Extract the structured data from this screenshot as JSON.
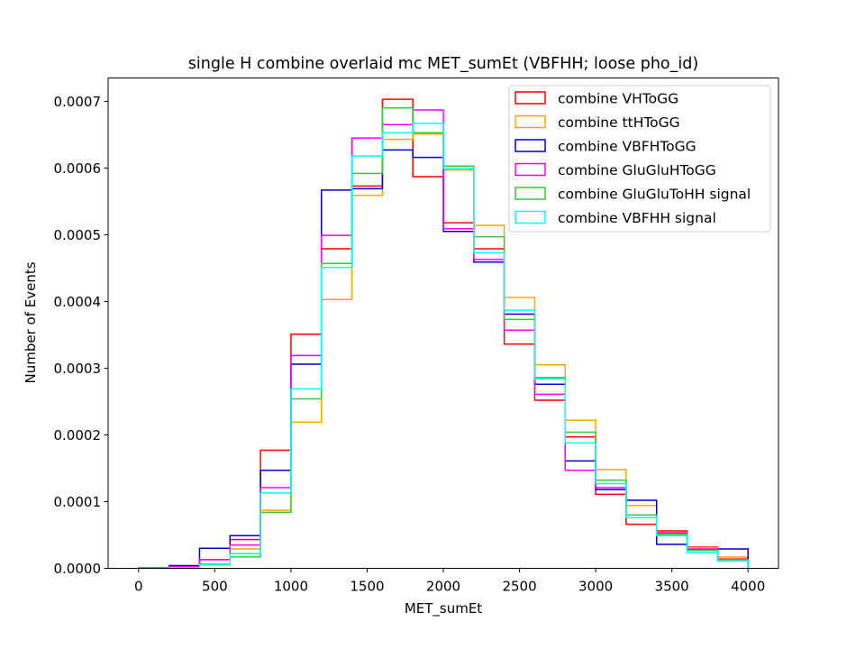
{
  "chart_data": {
    "type": "histogram-step",
    "title": "single H combine overlaid mc MET_sumEt (VBFHH; loose pho_id)",
    "xlabel": "MET_sumEt",
    "ylabel": "Number of Events",
    "xlim": [
      -200,
      4200
    ],
    "ylim": [
      0,
      0.000735
    ],
    "x_ticks": [
      "0",
      "500",
      "1000",
      "1500",
      "2000",
      "2500",
      "3000",
      "3500",
      "4000"
    ],
    "x_tick_values": [
      0,
      500,
      1000,
      1500,
      2000,
      2500,
      3000,
      3500,
      4000
    ],
    "y_ticks": [
      "0.0000",
      "0.0001",
      "0.0002",
      "0.0003",
      "0.0004",
      "0.0005",
      "0.0006",
      "0.0007"
    ],
    "y_tick_values": [
      0,
      0.0001,
      0.0002,
      0.0003,
      0.0004,
      0.0005,
      0.0006,
      0.0007
    ],
    "bin_edges": [
      0,
      200,
      400,
      600,
      800,
      1000,
      1200,
      1400,
      1600,
      1800,
      2000,
      2200,
      2400,
      2600,
      2800,
      3000,
      3200,
      3400,
      3600,
      3800,
      4000
    ],
    "legend_position": "top-right",
    "grid": false,
    "series": [
      {
        "name": "combine VHToGG",
        "color": "#ff0000",
        "values": [
          6e-07,
          2e-06,
          1.3e-05,
          4.3e-05,
          0.000177,
          0.000351,
          0.000479,
          0.000573,
          0.000703,
          0.000587,
          0.000518,
          0.000479,
          0.000336,
          0.000252,
          0.000197,
          0.000111,
          6.6e-05,
          5.6e-05,
          3.2e-05,
          1.4e-05
        ]
      },
      {
        "name": "combine ttHToGG",
        "color": "#ffa500",
        "values": [
          2e-07,
          1e-06,
          6e-06,
          2.9e-05,
          8.7e-05,
          0.000219,
          0.000403,
          0.000559,
          0.000643,
          0.000651,
          0.000597,
          0.000514,
          0.000406,
          0.000305,
          0.000222,
          0.000148,
          9.4e-05,
          5.4e-05,
          3.1e-05,
          1.7e-05
        ]
      },
      {
        "name": "combine VBFHToGG",
        "color": "#0000cc",
        "values": [
          6e-07,
          4e-06,
          3e-05,
          4.9e-05,
          0.000147,
          0.000306,
          0.000567,
          0.000569,
          0.000627,
          0.000616,
          0.000505,
          0.000459,
          0.000381,
          0.000276,
          0.000161,
          0.000118,
          0.000102,
          3.6e-05,
          2.8e-05,
          2.9e-05
        ]
      },
      {
        "name": "combine GluGluHToGG",
        "color": "#ff00ff",
        "values": [
          4e-07,
          2e-06,
          1.3e-05,
          3.5e-05,
          0.000121,
          0.000319,
          0.000499,
          0.000645,
          0.000665,
          0.000687,
          0.000509,
          0.000463,
          0.000357,
          0.000261,
          0.000147,
          0.000121,
          7.6e-05,
          5.3e-05,
          2.9e-05,
          1.3e-05
        ]
      },
      {
        "name": "combine GluGluToHH signal",
        "color": "#33cc33",
        "values": [
          2e-07,
          1e-06,
          6e-06,
          1.7e-05,
          8.4e-05,
          0.000254,
          0.000457,
          0.000592,
          0.00069,
          0.000653,
          0.000603,
          0.000497,
          0.000373,
          0.000286,
          0.000204,
          0.000132,
          8e-05,
          5.1e-05,
          2.7e-05,
          1.3e-05
        ]
      },
      {
        "name": "combine VBFHH signal",
        "color": "#00ffff",
        "values": [
          2e-07,
          1e-06,
          5e-06,
          2.2e-05,
          0.000113,
          0.000269,
          0.000451,
          0.000618,
          0.000653,
          0.000667,
          0.000599,
          0.000473,
          0.000387,
          0.000284,
          0.000188,
          0.000127,
          7.6e-05,
          4.9e-05,
          2.4e-05,
          1.1e-05
        ]
      }
    ]
  }
}
